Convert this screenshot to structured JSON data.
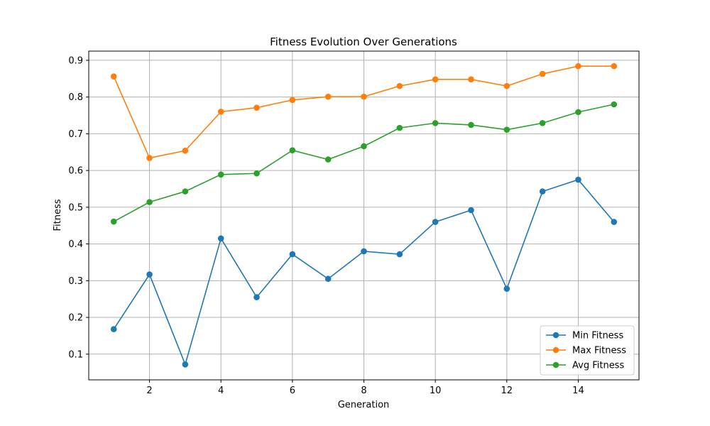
{
  "chart_data": {
    "type": "line",
    "title": "Fitness Evolution Over Generations",
    "xlabel": "Generation",
    "ylabel": "Fitness",
    "xlim": [
      0.3,
      15.7
    ],
    "ylim": [
      0.03,
      0.925
    ],
    "xticks": [
      2,
      4,
      6,
      8,
      10,
      12,
      14
    ],
    "yticks": [
      0.1,
      0.2,
      0.3,
      0.4,
      0.5,
      0.6,
      0.7,
      0.8,
      0.9
    ],
    "xtick_labels": [
      "2",
      "4",
      "6",
      "8",
      "10",
      "12",
      "14"
    ],
    "ytick_labels": [
      "0.1",
      "0.2",
      "0.3",
      "0.4",
      "0.5",
      "0.6",
      "0.7",
      "0.8",
      "0.9"
    ],
    "grid": true,
    "legend_position": "lower-right",
    "x": [
      1,
      2,
      3,
      4,
      5,
      6,
      7,
      8,
      9,
      10,
      11,
      12,
      13,
      14,
      15
    ],
    "series": [
      {
        "name": "Min Fitness",
        "color": "#1f77b4",
        "values": [
          0.168,
          0.317,
          0.072,
          0.415,
          0.255,
          0.372,
          0.305,
          0.38,
          0.372,
          0.46,
          0.492,
          0.278,
          0.543,
          0.575,
          0.46
        ]
      },
      {
        "name": "Max Fitness",
        "color": "#ff7f0e",
        "values": [
          0.856,
          0.634,
          0.654,
          0.76,
          0.771,
          0.792,
          0.801,
          0.801,
          0.83,
          0.848,
          0.848,
          0.83,
          0.863,
          0.884,
          0.884
        ]
      },
      {
        "name": "Avg Fitness",
        "color": "#2ca02c",
        "values": [
          0.461,
          0.514,
          0.543,
          0.589,
          0.592,
          0.655,
          0.63,
          0.666,
          0.716,
          0.729,
          0.724,
          0.711,
          0.729,
          0.759,
          0.78
        ]
      }
    ]
  }
}
